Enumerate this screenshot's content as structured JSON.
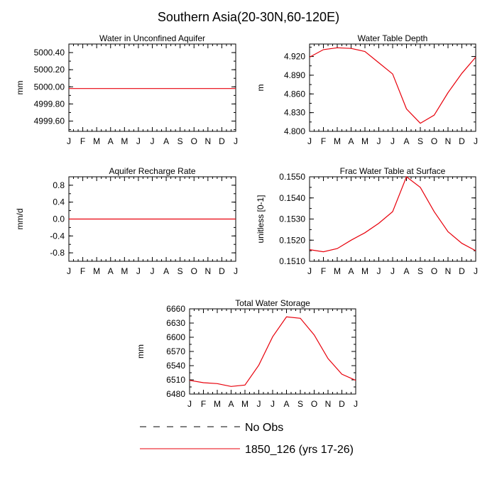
{
  "figure": {
    "title": "Southern Asia(20-30N,60-120E)",
    "legend": {
      "placement": "bottom-center",
      "entries": [
        {
          "label": "No Obs",
          "style": "dashed",
          "color": "#000000"
        },
        {
          "label": "1850_126 (yrs 17-26)",
          "style": "solid",
          "color": "#e8000b"
        }
      ]
    }
  },
  "chart_data": [
    {
      "type": "line",
      "title": "Water in Unconfined Aquifer",
      "xlabel": "",
      "ylabel": "mm",
      "categories": [
        "J",
        "F",
        "M",
        "A",
        "M",
        "J",
        "J",
        "A",
        "S",
        "O",
        "N",
        "D",
        "J"
      ],
      "yticks": [
        4999.6,
        4999.8,
        5000.0,
        5000.2,
        5000.4
      ],
      "ytick_labels": [
        "4999.60",
        "4999.80",
        "5000.00",
        "5000.20",
        "5000.40"
      ],
      "ylim": [
        4999.48,
        5000.5
      ],
      "grid": false,
      "series": [
        {
          "name": "1850_126 (yrs 17-26)",
          "color": "#e8000b",
          "values": [
            4999.98,
            4999.98,
            4999.98,
            4999.98,
            4999.98,
            4999.98,
            4999.98,
            4999.98,
            4999.98,
            4999.98,
            4999.98,
            4999.98,
            4999.98
          ]
        }
      ]
    },
    {
      "type": "line",
      "title": "Water Table Depth",
      "xlabel": "",
      "ylabel": "m",
      "categories": [
        "J",
        "F",
        "M",
        "A",
        "M",
        "J",
        "J",
        "A",
        "S",
        "O",
        "N",
        "D",
        "J"
      ],
      "yticks": [
        4.8,
        4.83,
        4.86,
        4.89,
        4.92
      ],
      "ytick_labels": [
        "4.800",
        "4.830",
        "4.860",
        "4.890",
        "4.920"
      ],
      "ylim": [
        4.8,
        4.94
      ],
      "grid": false,
      "series": [
        {
          "name": "1850_126 (yrs 17-26)",
          "color": "#e8000b",
          "values": [
            4.919,
            4.931,
            4.934,
            4.933,
            4.928,
            4.91,
            4.892,
            4.836,
            4.813,
            4.826,
            4.862,
            4.893,
            4.919
          ]
        }
      ]
    },
    {
      "type": "line",
      "title": "Aquifer Recharge Rate",
      "xlabel": "",
      "ylabel": "mm/d",
      "categories": [
        "J",
        "F",
        "M",
        "A",
        "M",
        "J",
        "J",
        "A",
        "S",
        "O",
        "N",
        "D",
        "J"
      ],
      "yticks": [
        -0.8,
        -0.4,
        0.0,
        0.4,
        0.8
      ],
      "ytick_labels": [
        "-0.8",
        "-0.4",
        "0.0",
        "0.4",
        "0.8"
      ],
      "ylim": [
        -1.0,
        1.0
      ],
      "grid": false,
      "series": [
        {
          "name": "1850_126 (yrs 17-26)",
          "color": "#e8000b",
          "values": [
            0,
            0,
            0,
            0,
            0,
            0,
            0,
            0,
            0,
            0,
            0,
            0,
            0
          ]
        }
      ]
    },
    {
      "type": "line",
      "title": "Frac Water Table at Surface",
      "xlabel": "",
      "ylabel": "unitless [0-1]",
      "categories": [
        "J",
        "F",
        "M",
        "A",
        "M",
        "J",
        "J",
        "A",
        "S",
        "O",
        "N",
        "D",
        "J"
      ],
      "yticks": [
        0.151,
        0.152,
        0.153,
        0.154,
        0.155
      ],
      "ytick_labels": [
        "0.1510",
        "0.1520",
        "0.1530",
        "0.1540",
        "0.1550"
      ],
      "ylim": [
        0.151,
        0.155
      ],
      "grid": false,
      "series": [
        {
          "name": "1850_126 (yrs 17-26)",
          "color": "#e8000b",
          "values": [
            0.15155,
            0.15145,
            0.1516,
            0.152,
            0.15235,
            0.1528,
            0.15335,
            0.155,
            0.1545,
            0.15335,
            0.1524,
            0.15185,
            0.1515
          ]
        }
      ]
    },
    {
      "type": "line",
      "title": "Total Water Storage",
      "xlabel": "",
      "ylabel": "mm",
      "categories": [
        "J",
        "F",
        "M",
        "A",
        "M",
        "J",
        "J",
        "A",
        "S",
        "O",
        "N",
        "D",
        "J"
      ],
      "yticks": [
        6480,
        6510,
        6540,
        6570,
        6600,
        6630,
        6660
      ],
      "ytick_labels": [
        "6480",
        "6510",
        "6540",
        "6570",
        "6600",
        "6630",
        "6660"
      ],
      "ylim": [
        6480,
        6660
      ],
      "grid": false,
      "series": [
        {
          "name": "1850_126 (yrs 17-26)",
          "color": "#e8000b",
          "values": [
            6509,
            6504,
            6502,
            6496,
            6499,
            6541,
            6601,
            6643,
            6640,
            6605,
            6555,
            6522,
            6509
          ]
        }
      ]
    }
  ]
}
